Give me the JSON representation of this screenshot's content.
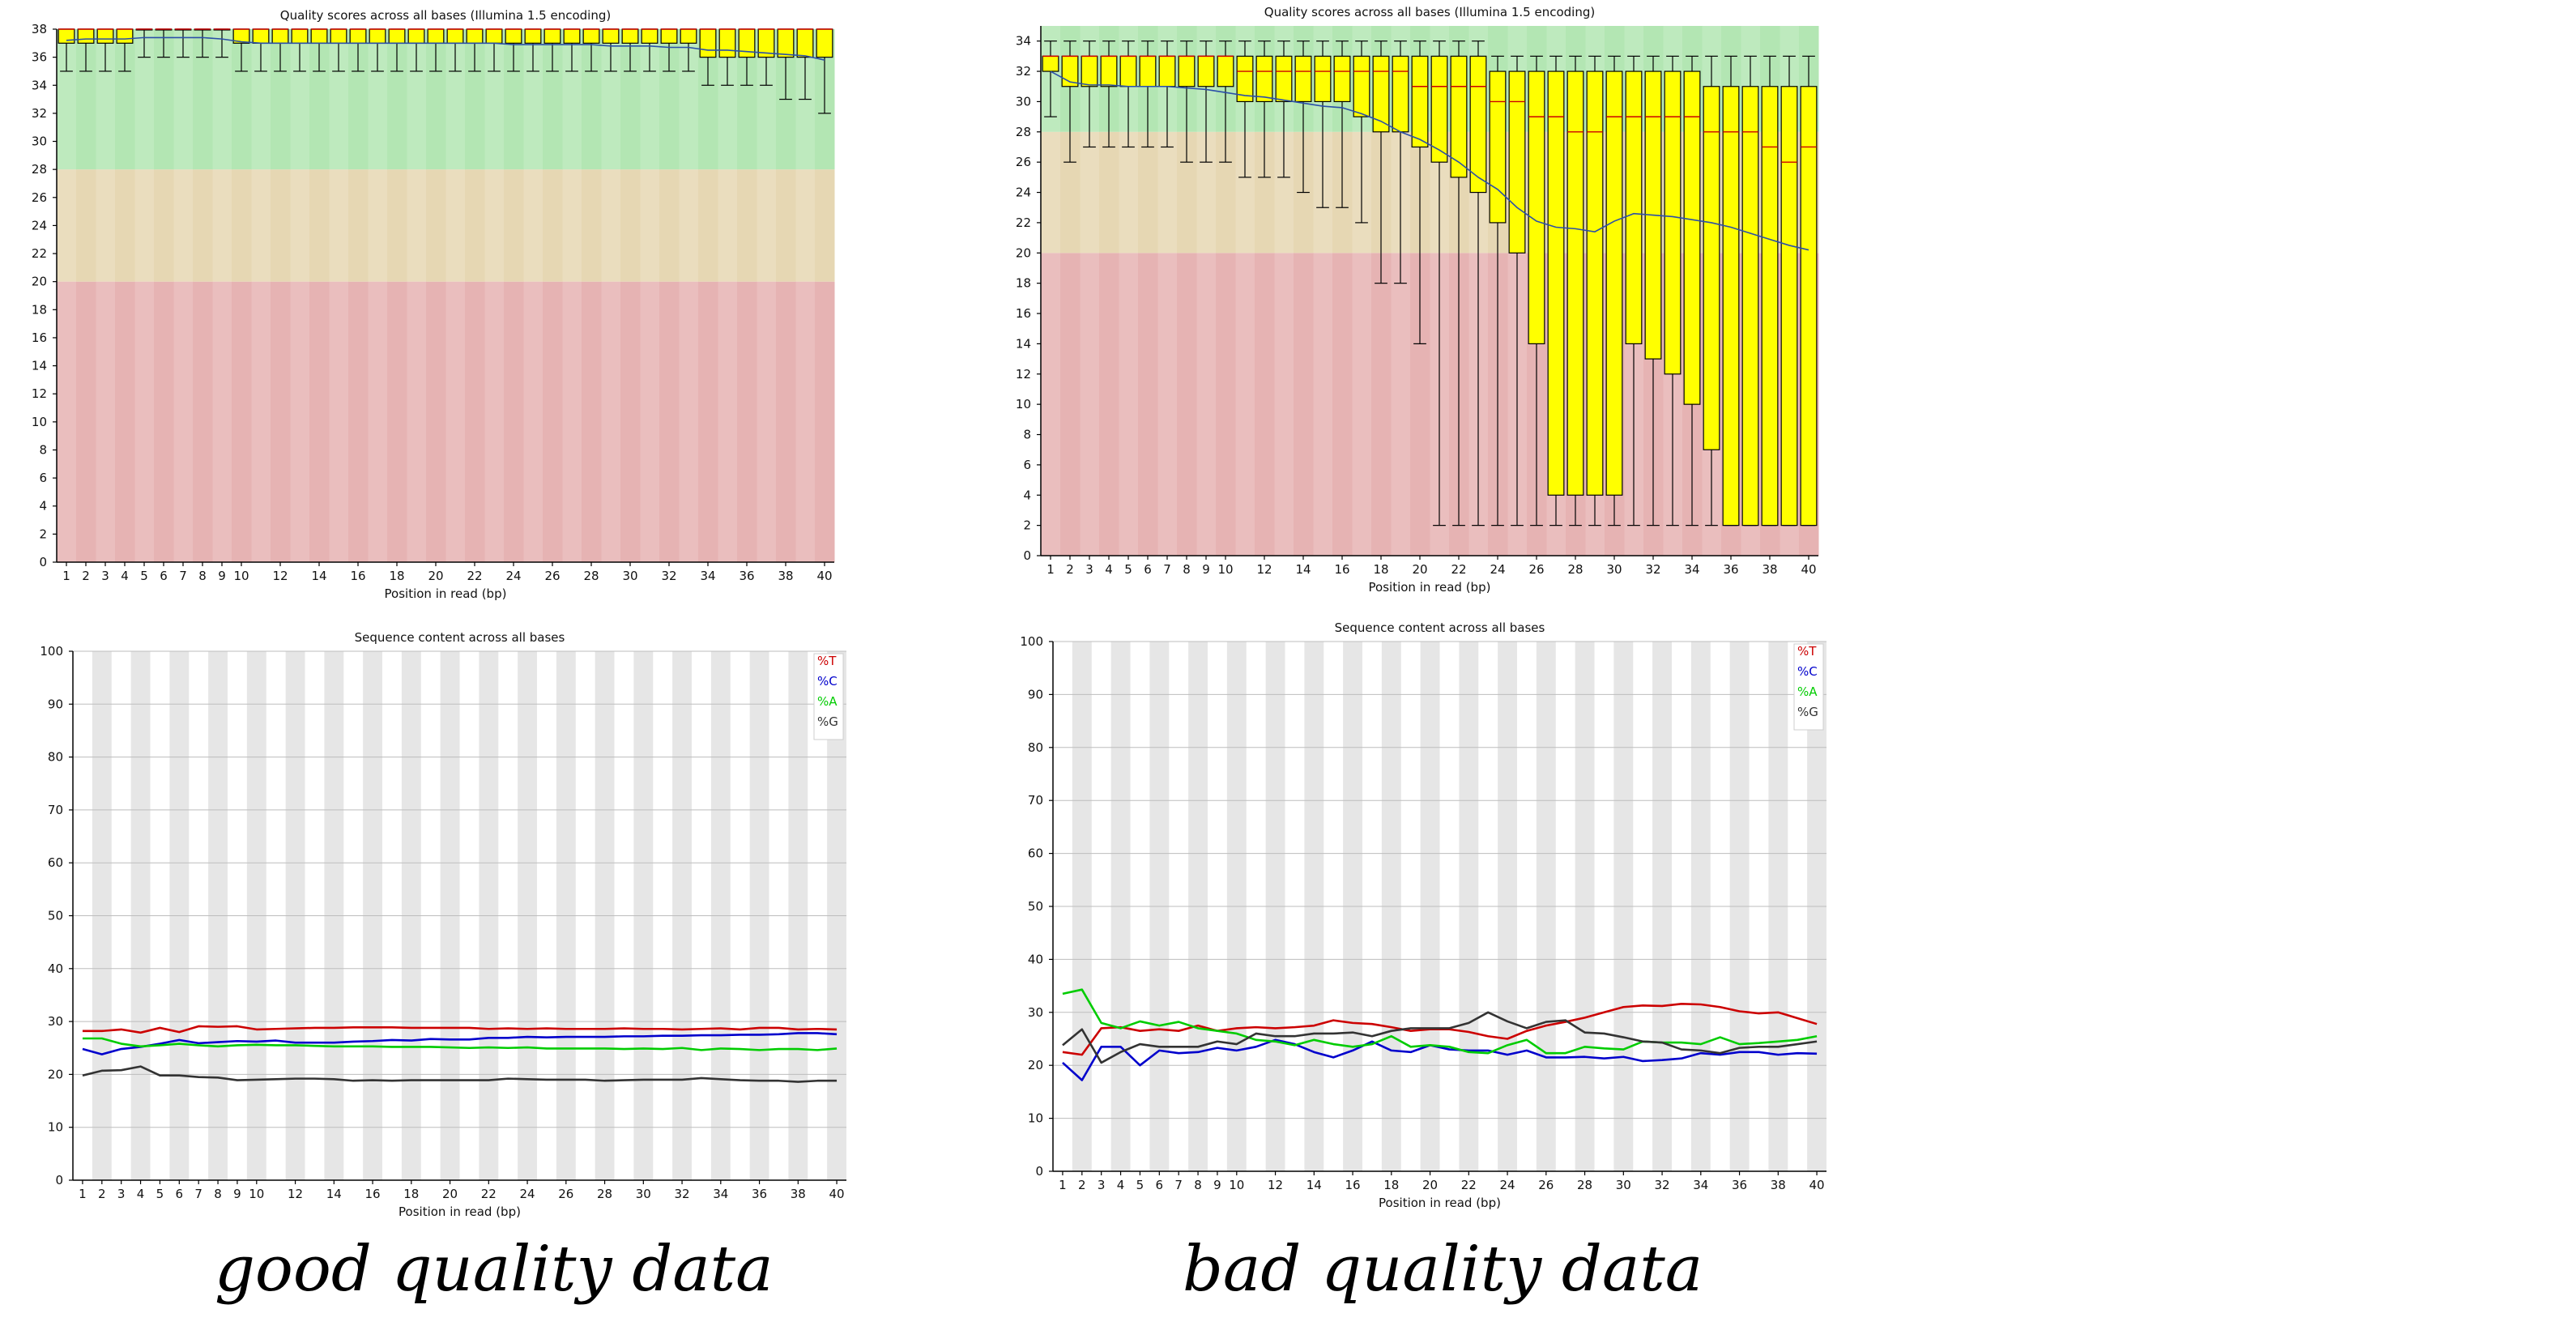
{
  "captions": {
    "left": "good quality data",
    "right": "bad quality data"
  },
  "colors": {
    "zone_green": "#b3e6b3",
    "zone_orange": "#e6d7b3",
    "zone_red": "#e6b3b3",
    "stripe_tint": "#e6e6e6",
    "box_fill": "#ffff00",
    "median": "#cc0000",
    "mean_line": "#2b4fa8",
    "T": "#cc0000",
    "C": "#0000cc",
    "A": "#00cc00",
    "G": "#333333"
  },
  "chart_data": [
    {
      "type": "box",
      "title": "Quality scores across all bases (Illumina 1.5 encoding)",
      "xlabel": "Position in read (bp)",
      "ylabel": "",
      "x": [
        1,
        2,
        3,
        4,
        5,
        6,
        7,
        8,
        9,
        10,
        11,
        12,
        13,
        14,
        15,
        16,
        17,
        18,
        19,
        20,
        21,
        22,
        23,
        24,
        25,
        26,
        27,
        28,
        29,
        30,
        31,
        32,
        33,
        34,
        35,
        36,
        37,
        38,
        39,
        40
      ],
      "xticks": [
        1,
        2,
        3,
        4,
        5,
        6,
        7,
        8,
        9,
        10,
        12,
        14,
        16,
        18,
        20,
        22,
        24,
        26,
        28,
        30,
        32,
        34,
        36,
        38,
        40
      ],
      "ylim": [
        0,
        38
      ],
      "yticks": [
        0,
        2,
        4,
        6,
        8,
        10,
        12,
        14,
        16,
        18,
        20,
        22,
        24,
        26,
        28,
        30,
        32,
        34,
        36,
        38
      ],
      "zones": {
        "red": [
          0,
          20
        ],
        "orange": [
          20,
          28
        ],
        "green": [
          28,
          38
        ]
      },
      "q1": [
        37,
        37,
        37,
        37,
        38,
        38,
        38,
        38,
        38,
        37,
        37,
        37,
        37,
        37,
        37,
        37,
        37,
        37,
        37,
        37,
        37,
        37,
        37,
        37,
        37,
        37,
        37,
        37,
        37,
        37,
        37,
        37,
        37,
        36,
        36,
        36,
        36,
        36,
        36,
        36
      ],
      "median": [
        38,
        38,
        38,
        38,
        38,
        38,
        38,
        38,
        38,
        38,
        38,
        38,
        38,
        38,
        38,
        38,
        38,
        38,
        38,
        38,
        38,
        38,
        38,
        38,
        38,
        38,
        38,
        38,
        38,
        38,
        38,
        38,
        38,
        38,
        38,
        38,
        38,
        38,
        38,
        38
      ],
      "q3": [
        38,
        38,
        38,
        38,
        38,
        38,
        38,
        38,
        38,
        38,
        38,
        38,
        38,
        38,
        38,
        38,
        38,
        38,
        38,
        38,
        38,
        38,
        38,
        38,
        38,
        38,
        38,
        38,
        38,
        38,
        38,
        38,
        38,
        38,
        38,
        38,
        38,
        38,
        38,
        38
      ],
      "low": [
        35,
        35,
        35,
        35,
        36,
        36,
        36,
        36,
        36,
        35,
        35,
        35,
        35,
        35,
        35,
        35,
        35,
        35,
        35,
        35,
        35,
        35,
        35,
        35,
        35,
        35,
        35,
        35,
        35,
        35,
        35,
        35,
        35,
        34,
        34,
        34,
        34,
        33,
        33,
        32
      ],
      "high": [
        38,
        38,
        38,
        38,
        38,
        38,
        38,
        38,
        38,
        38,
        38,
        38,
        38,
        38,
        38,
        38,
        38,
        38,
        38,
        38,
        38,
        38,
        38,
        38,
        38,
        38,
        38,
        38,
        38,
        38,
        38,
        38,
        38,
        38,
        38,
        38,
        38,
        38,
        38,
        38
      ],
      "mean": [
        37.2,
        37.3,
        37.3,
        37.3,
        37.4,
        37.4,
        37.4,
        37.4,
        37.3,
        37.1,
        37.0,
        37.0,
        37.0,
        37.0,
        37.0,
        37.0,
        37.0,
        37.0,
        37.0,
        37.0,
        37.0,
        37.0,
        37.0,
        36.9,
        36.9,
        36.9,
        36.9,
        36.9,
        36.8,
        36.8,
        36.8,
        36.7,
        36.7,
        36.5,
        36.5,
        36.4,
        36.3,
        36.2,
        36.1,
        35.8
      ]
    },
    {
      "type": "box",
      "title": "Quality scores across all bases (Illumina 1.5 encoding)",
      "xlabel": "Position in read (bp)",
      "ylabel": "",
      "x": [
        1,
        2,
        3,
        4,
        5,
        6,
        7,
        8,
        9,
        10,
        11,
        12,
        13,
        14,
        15,
        16,
        17,
        18,
        19,
        20,
        21,
        22,
        23,
        24,
        25,
        26,
        27,
        28,
        29,
        30,
        31,
        32,
        33,
        34,
        35,
        36,
        37,
        38,
        39,
        40
      ],
      "xticks": [
        1,
        2,
        3,
        4,
        5,
        6,
        7,
        8,
        9,
        10,
        12,
        14,
        16,
        18,
        20,
        22,
        24,
        26,
        28,
        30,
        32,
        34,
        36,
        38,
        40
      ],
      "ylim": [
        0,
        35
      ],
      "yticks": [
        0,
        2,
        4,
        6,
        8,
        10,
        12,
        14,
        16,
        18,
        20,
        22,
        24,
        26,
        28,
        30,
        32,
        34
      ],
      "zones": {
        "red": [
          0,
          20
        ],
        "orange": [
          20,
          28
        ],
        "green": [
          28,
          35
        ]
      },
      "q1": [
        32,
        31,
        31,
        31,
        31,
        31,
        31,
        31,
        31,
        31,
        30,
        30,
        30,
        30,
        30,
        30,
        29,
        28,
        28,
        27,
        26,
        25,
        24,
        22,
        20,
        14,
        4,
        4,
        4,
        4,
        14,
        13,
        12,
        10,
        7,
        2,
        2,
        2,
        2,
        2
      ],
      "median": [
        33,
        33,
        33,
        33,
        33,
        33,
        33,
        33,
        33,
        33,
        32,
        32,
        32,
        32,
        32,
        32,
        32,
        32,
        32,
        31,
        31,
        31,
        31,
        30,
        30,
        29,
        29,
        28,
        28,
        29,
        29,
        29,
        29,
        29,
        28,
        28,
        28,
        27,
        26,
        27
      ],
      "q3": [
        33,
        33,
        33,
        33,
        33,
        33,
        33,
        33,
        33,
        33,
        33,
        33,
        33,
        33,
        33,
        33,
        33,
        33,
        33,
        33,
        33,
        33,
        33,
        32,
        32,
        32,
        32,
        32,
        32,
        32,
        32,
        32,
        32,
        32,
        31,
        31,
        31,
        31,
        31,
        31
      ],
      "low": [
        29,
        26,
        27,
        27,
        27,
        27,
        27,
        26,
        26,
        26,
        25,
        25,
        25,
        24,
        23,
        23,
        22,
        18,
        18,
        14,
        2,
        2,
        2,
        2,
        2,
        2,
        2,
        2,
        2,
        2,
        2,
        2,
        2,
        2,
        2,
        2,
        2,
        2,
        2,
        2
      ],
      "high": [
        34,
        34,
        34,
        34,
        34,
        34,
        34,
        34,
        34,
        34,
        34,
        34,
        34,
        34,
        34,
        34,
        34,
        34,
        34,
        34,
        34,
        34,
        34,
        33,
        33,
        33,
        33,
        33,
        33,
        33,
        33,
        33,
        33,
        33,
        33,
        33,
        33,
        33,
        33,
        33
      ],
      "mean": [
        32.0,
        31.3,
        31.1,
        31.1,
        31.0,
        31.0,
        31.0,
        30.9,
        30.8,
        30.6,
        30.4,
        30.3,
        30.1,
        29.9,
        29.7,
        29.6,
        29.2,
        28.7,
        28.0,
        27.5,
        26.8,
        26.0,
        25.0,
        24.2,
        23.0,
        22.1,
        21.7,
        21.6,
        21.4,
        22.1,
        22.6,
        22.5,
        22.4,
        22.2,
        22.0,
        21.7,
        21.3,
        20.9,
        20.5,
        20.2
      ]
    },
    {
      "type": "line",
      "title": "Sequence content across all bases",
      "xlabel": "Position in read (bp)",
      "ylabel": "",
      "x": [
        1,
        2,
        3,
        4,
        5,
        6,
        7,
        8,
        9,
        10,
        11,
        12,
        13,
        14,
        15,
        16,
        17,
        18,
        19,
        20,
        21,
        22,
        23,
        24,
        25,
        26,
        27,
        28,
        29,
        30,
        31,
        32,
        33,
        34,
        35,
        36,
        37,
        38,
        39,
        40
      ],
      "xticks": [
        1,
        2,
        3,
        4,
        5,
        6,
        7,
        8,
        9,
        10,
        12,
        14,
        16,
        18,
        20,
        22,
        24,
        26,
        28,
        30,
        32,
        34,
        36,
        38,
        40
      ],
      "ylim": [
        0,
        100
      ],
      "yticks": [
        0,
        10,
        20,
        30,
        40,
        50,
        60,
        70,
        80,
        90,
        100
      ],
      "legend_position": "top-right",
      "series": [
        {
          "name": "%T",
          "color_key": "T",
          "values": [
            28.2,
            28.2,
            28.5,
            27.9,
            28.8,
            28.0,
            29.1,
            29.0,
            29.1,
            28.5,
            28.6,
            28.7,
            28.8,
            28.8,
            28.9,
            28.9,
            28.9,
            28.8,
            28.8,
            28.8,
            28.8,
            28.6,
            28.7,
            28.6,
            28.7,
            28.6,
            28.6,
            28.6,
            28.7,
            28.6,
            28.6,
            28.5,
            28.6,
            28.7,
            28.5,
            28.8,
            28.8,
            28.5,
            28.6,
            28.5
          ]
        },
        {
          "name": "%C",
          "color_key": "C",
          "values": [
            24.8,
            23.8,
            24.8,
            25.2,
            25.8,
            26.5,
            25.9,
            26.1,
            26.3,
            26.2,
            26.4,
            26.0,
            26.0,
            26.0,
            26.2,
            26.3,
            26.5,
            26.4,
            26.7,
            26.6,
            26.6,
            26.9,
            26.9,
            27.1,
            27.0,
            27.1,
            27.1,
            27.1,
            27.2,
            27.2,
            27.3,
            27.3,
            27.4,
            27.4,
            27.5,
            27.5,
            27.6,
            27.8,
            27.8,
            27.6
          ]
        },
        {
          "name": "%A",
          "color_key": "A",
          "values": [
            26.8,
            26.8,
            25.8,
            25.3,
            25.5,
            25.8,
            25.5,
            25.3,
            25.5,
            25.6,
            25.5,
            25.5,
            25.4,
            25.3,
            25.3,
            25.3,
            25.2,
            25.2,
            25.2,
            25.1,
            25.0,
            25.1,
            25.0,
            25.1,
            24.9,
            24.9,
            24.9,
            24.9,
            24.8,
            24.9,
            24.8,
            25.0,
            24.6,
            24.9,
            24.8,
            24.6,
            24.8,
            24.8,
            24.6,
            24.9
          ]
        },
        {
          "name": "%G",
          "color_key": "G",
          "values": [
            19.8,
            20.7,
            20.8,
            21.5,
            19.8,
            19.8,
            19.5,
            19.4,
            18.9,
            19.0,
            19.1,
            19.2,
            19.2,
            19.1,
            18.8,
            18.9,
            18.8,
            18.9,
            18.9,
            18.9,
            18.9,
            18.9,
            19.2,
            19.1,
            19.0,
            19.0,
            19.0,
            18.8,
            18.9,
            19.0,
            19.0,
            19.0,
            19.3,
            19.1,
            18.9,
            18.8,
            18.8,
            18.6,
            18.8,
            18.8
          ]
        }
      ]
    },
    {
      "type": "line",
      "title": "Sequence content across all bases",
      "xlabel": "Position in read (bp)",
      "ylabel": "",
      "x": [
        1,
        2,
        3,
        4,
        5,
        6,
        7,
        8,
        9,
        10,
        11,
        12,
        13,
        14,
        15,
        16,
        17,
        18,
        19,
        20,
        21,
        22,
        23,
        24,
        25,
        26,
        27,
        28,
        29,
        30,
        31,
        32,
        33,
        34,
        35,
        36,
        37,
        38,
        39,
        40
      ],
      "xticks": [
        1,
        2,
        3,
        4,
        5,
        6,
        7,
        8,
        9,
        10,
        12,
        14,
        16,
        18,
        20,
        22,
        24,
        26,
        28,
        30,
        32,
        34,
        36,
        38,
        40
      ],
      "ylim": [
        0,
        100
      ],
      "yticks": [
        0,
        10,
        20,
        30,
        40,
        50,
        60,
        70,
        80,
        90,
        100
      ],
      "legend_position": "top-right",
      "series": [
        {
          "name": "%T",
          "color_key": "T",
          "values": [
            22.5,
            22.0,
            27.0,
            27.2,
            26.5,
            26.8,
            26.5,
            27.5,
            26.5,
            27.0,
            27.2,
            27.0,
            27.2,
            27.5,
            28.5,
            28.0,
            27.8,
            27.2,
            26.5,
            26.8,
            26.8,
            26.3,
            25.5,
            25.0,
            26.5,
            27.5,
            28.2,
            29.0,
            30.0,
            31.0,
            31.3,
            31.2,
            31.6,
            31.5,
            31.0,
            30.2,
            29.8,
            30.0,
            28.9,
            27.8
          ]
        },
        {
          "name": "%C",
          "color_key": "C",
          "values": [
            20.5,
            17.2,
            23.5,
            23.5,
            20.0,
            22.8,
            22.3,
            22.5,
            23.3,
            22.8,
            23.5,
            24.8,
            24.0,
            22.5,
            21.5,
            22.8,
            24.5,
            22.8,
            22.5,
            23.8,
            23.0,
            22.8,
            22.8,
            22.0,
            22.8,
            21.5,
            21.5,
            21.6,
            21.3,
            21.6,
            20.8,
            21.0,
            21.3,
            22.3,
            22.0,
            22.5,
            22.5,
            22.0,
            22.3,
            22.2
          ]
        },
        {
          "name": "%A",
          "color_key": "A",
          "values": [
            33.5,
            34.3,
            28.0,
            27.0,
            28.3,
            27.5,
            28.2,
            27.0,
            26.5,
            26.0,
            24.8,
            24.5,
            23.8,
            24.8,
            24.0,
            23.5,
            24.0,
            25.5,
            23.5,
            23.8,
            23.5,
            22.5,
            22.3,
            23.8,
            24.8,
            22.3,
            22.3,
            23.5,
            23.2,
            23.0,
            24.5,
            24.3,
            24.3,
            24.0,
            25.3,
            24.0,
            24.2,
            24.5,
            24.8,
            25.5
          ]
        },
        {
          "name": "%G",
          "color_key": "G",
          "values": [
            23.8,
            26.8,
            20.5,
            22.5,
            24.0,
            23.5,
            23.5,
            23.5,
            24.5,
            24.0,
            26.0,
            25.5,
            25.5,
            26.0,
            26.0,
            26.2,
            25.5,
            26.5,
            27.0,
            27.0,
            27.0,
            28.0,
            30.0,
            28.3,
            27.0,
            28.2,
            28.5,
            26.2,
            26.0,
            25.3,
            24.5,
            24.3,
            23.0,
            22.8,
            22.3,
            23.3,
            23.5,
            23.5,
            24.0,
            24.5
          ]
        }
      ]
    }
  ]
}
